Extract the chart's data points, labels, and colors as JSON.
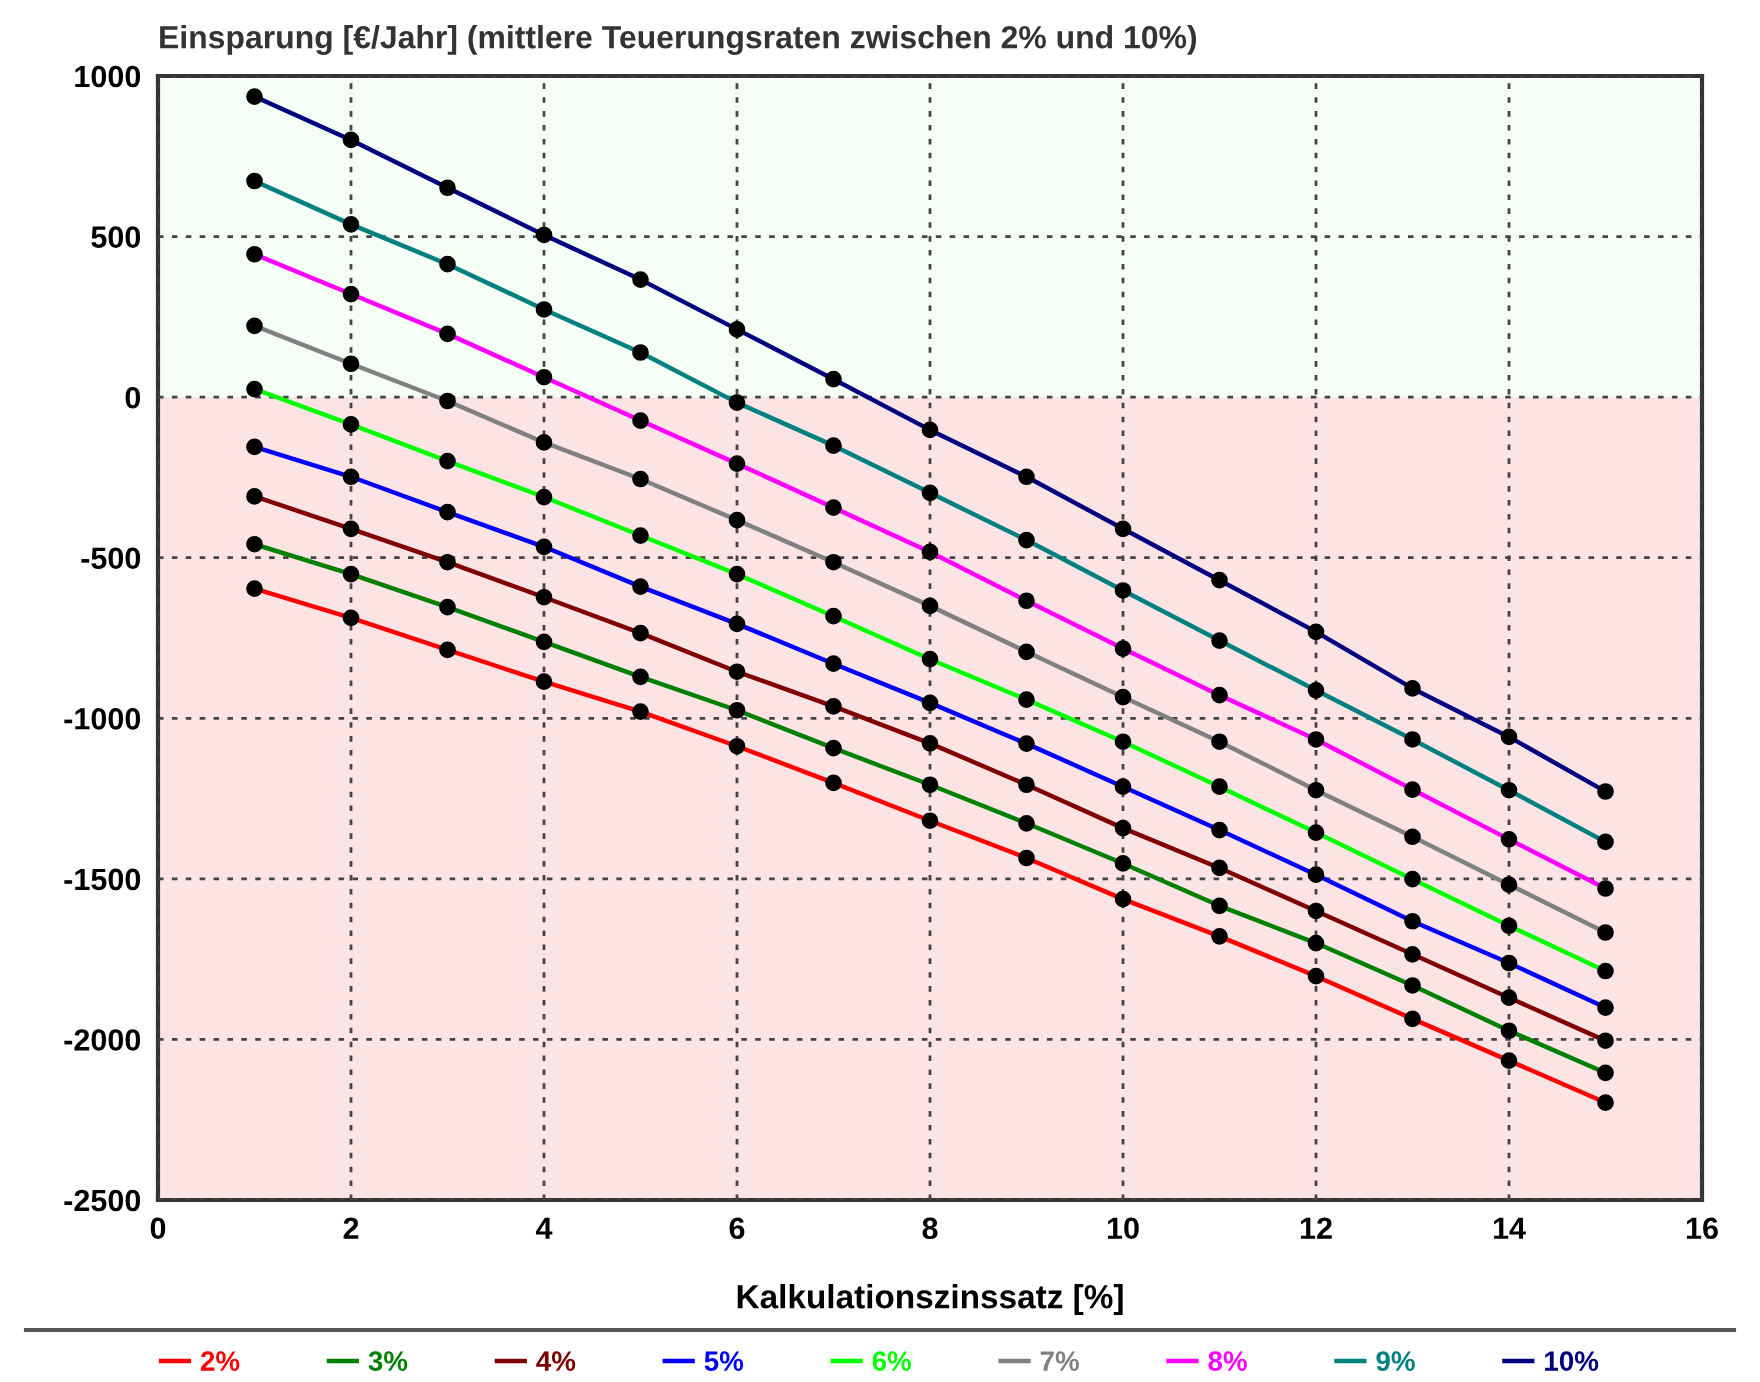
{
  "chart_data": {
    "type": "line",
    "title": "Einsparung [€/Jahr] (mittlere Teuerungsraten zwischen 2% und 10%)",
    "xlabel": "Kalkulationszinssatz [%]",
    "x": [
      1,
      2,
      3,
      4,
      5,
      6,
      7,
      8,
      9,
      10,
      11,
      12,
      13,
      14,
      15
    ],
    "series": [
      {
        "name": "2%",
        "color": "#ff0000",
        "values": [
          -596,
          -687,
          -787,
          -886,
          -979,
          -1087,
          -1201,
          -1319,
          -1435,
          -1563,
          -1679,
          -1803,
          -1936,
          -2066,
          -2197
        ]
      },
      {
        "name": "3%",
        "color": "#008000",
        "values": [
          -458,
          -551,
          -654,
          -762,
          -871,
          -975,
          -1093,
          -1207,
          -1327,
          -1452,
          -1584,
          -1700,
          -1832,
          -1973,
          -2104
        ]
      },
      {
        "name": "4%",
        "color": "#800000",
        "values": [
          -309,
          -410,
          -514,
          -623,
          -735,
          -855,
          -963,
          -1078,
          -1207,
          -1342,
          -1466,
          -1600,
          -1735,
          -1870,
          -2004
        ]
      },
      {
        "name": "5%",
        "color": "#0000ff",
        "values": [
          -155,
          -248,
          -358,
          -466,
          -590,
          -706,
          -830,
          -952,
          -1079,
          -1213,
          -1348,
          -1487,
          -1632,
          -1762,
          -1901
        ]
      },
      {
        "name": "6%",
        "color": "#00ff00",
        "values": [
          25,
          -85,
          -199,
          -311,
          -431,
          -551,
          -682,
          -816,
          -942,
          -1073,
          -1213,
          -1356,
          -1501,
          -1646,
          -1787
        ]
      },
      {
        "name": "7%",
        "color": "#808080",
        "values": [
          222,
          104,
          -12,
          -141,
          -255,
          -383,
          -514,
          -650,
          -793,
          -934,
          -1073,
          -1224,
          -1369,
          -1518,
          -1667
        ]
      },
      {
        "name": "8%",
        "color": "#ff00ff",
        "values": [
          445,
          321,
          197,
          62,
          -73,
          -207,
          -344,
          -482,
          -634,
          -783,
          -928,
          -1066,
          -1222,
          -1377,
          -1530
        ]
      },
      {
        "name": "9%",
        "color": "#008080",
        "values": [
          673,
          538,
          414,
          273,
          139,
          -17,
          -151,
          -298,
          -445,
          -602,
          -758,
          -913,
          -1066,
          -1224,
          -1385
        ]
      },
      {
        "name": "10%",
        "color": "#000080",
        "values": [
          936,
          801,
          652,
          505,
          366,
          211,
          56,
          -102,
          -248,
          -410,
          -570,
          -731,
          -907,
          -1058,
          -1228
        ]
      }
    ],
    "xlim": [
      0,
      16
    ],
    "xticks": [
      0,
      2,
      4,
      6,
      8,
      10,
      12,
      14,
      16
    ],
    "ylim": [
      -2500,
      1000
    ],
    "yticks": [
      -2500,
      -2000,
      -1500,
      -1000,
      -500,
      0,
      500,
      1000
    ],
    "bands": [
      {
        "axis": "y",
        "from": 0,
        "to": 1000,
        "color": "#f5fff5"
      },
      {
        "axis": "y",
        "from": -2500,
        "to": 0,
        "color": "#fde4e4"
      }
    ],
    "grid": true,
    "legend": "bottom",
    "marker": "circle",
    "line_style": "solid"
  }
}
